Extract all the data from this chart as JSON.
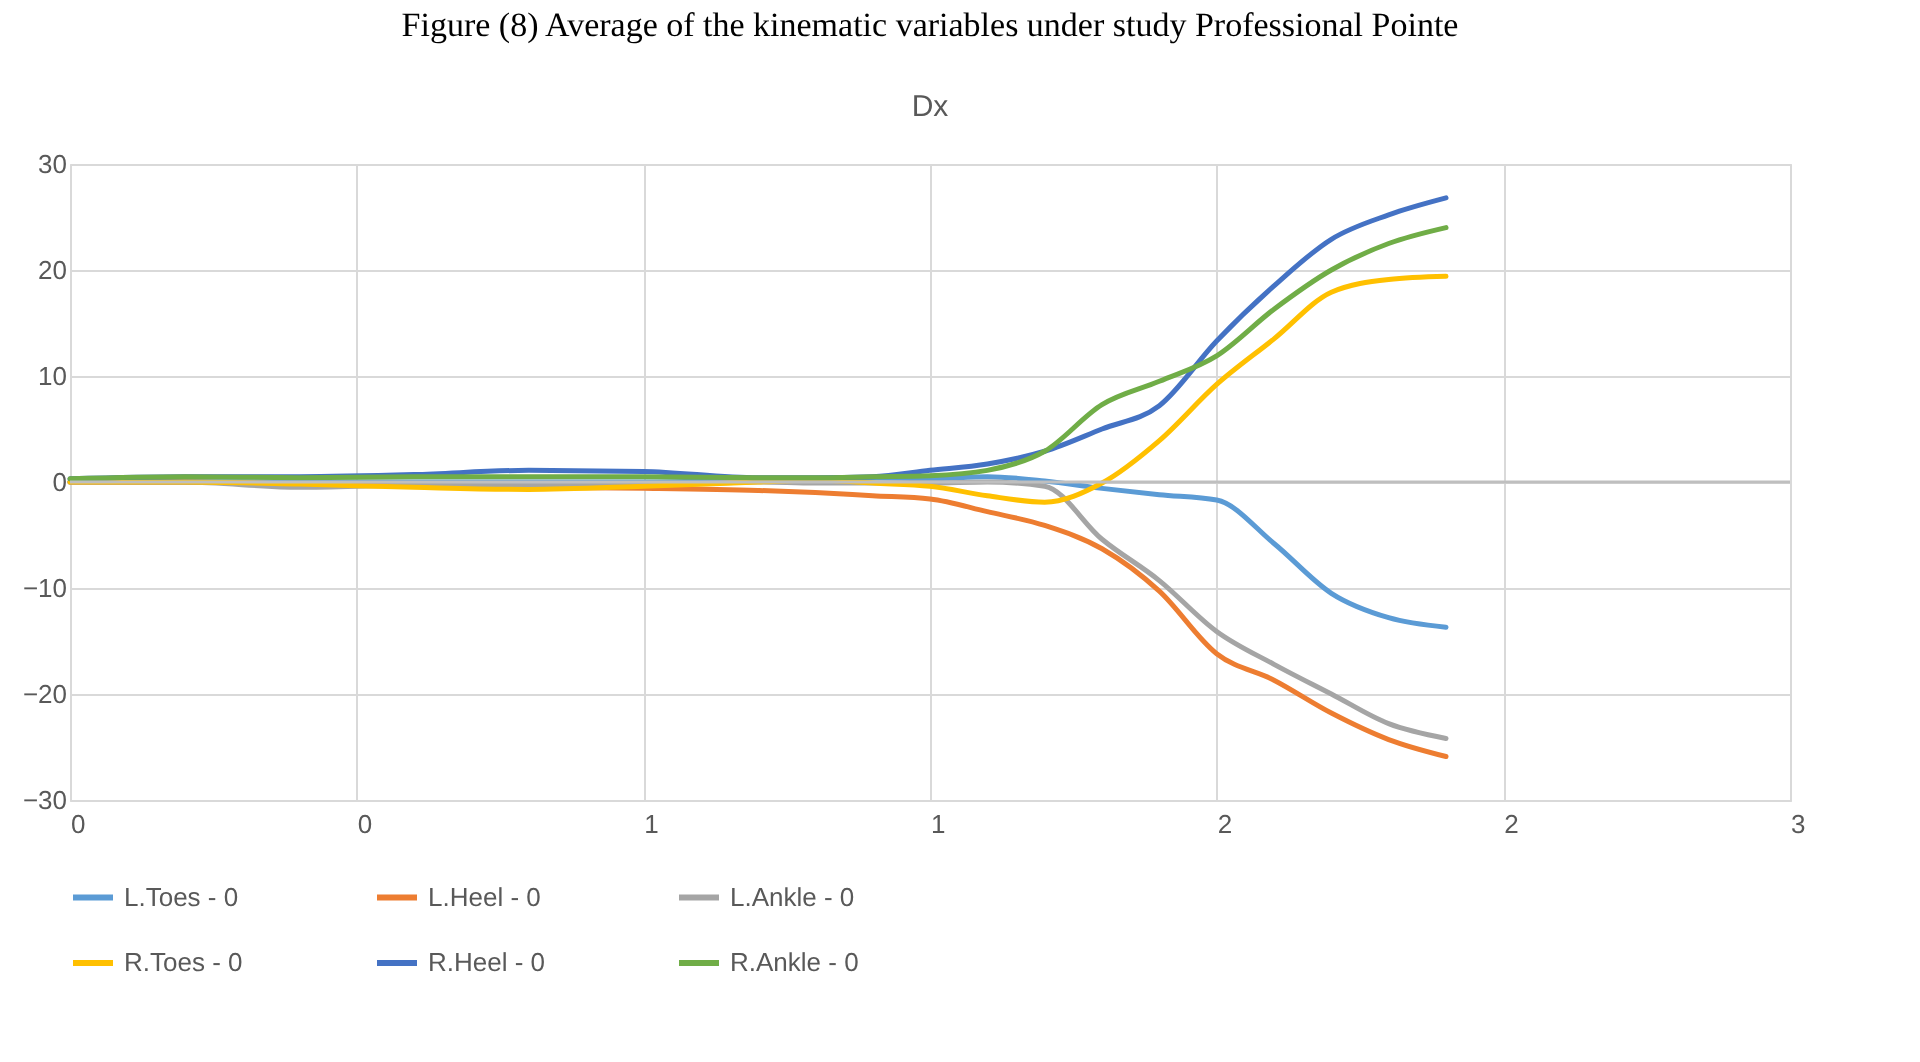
{
  "chart_data": {
    "type": "line",
    "title": "Figure (8) Average of the kinematic variables under study Professional Pointe",
    "subtitle": "Dx",
    "x": [
      0,
      0.2,
      0.4,
      0.6,
      0.8,
      1.0,
      1.2,
      1.3,
      1.4,
      1.5,
      1.6,
      1.7,
      1.8,
      1.9,
      2.0,
      2.1,
      2.2,
      2.3,
      2.4
    ],
    "series": [
      {
        "name": "L.Toes - 0",
        "color": "#5b9bd5",
        "values": [
          0,
          0,
          0,
          0,
          0,
          0,
          0.2,
          0.3,
          0.4,
          0.3,
          0.5,
          0.1,
          -0.6,
          -1.2,
          -1.7,
          -5.8,
          -10.5,
          -12.8,
          -13.7
        ]
      },
      {
        "name": "L.Heel - 0",
        "color": "#ed7d31",
        "values": [
          0,
          0,
          -0.2,
          -0.3,
          -0.5,
          -0.6,
          -0.8,
          -1.0,
          -1.3,
          -1.6,
          -2.8,
          -4.1,
          -6.3,
          -10.3,
          -16.2,
          -18.7,
          -21.8,
          -24.3,
          -25.9
        ]
      },
      {
        "name": "L.Ankle - 0",
        "color": "#a5a5a5",
        "values": [
          0,
          0,
          -0.5,
          -0.3,
          -0.3,
          -0.3,
          0,
          -0.1,
          -0.1,
          -0.1,
          0,
          -0.4,
          -5.4,
          -9.3,
          -14.1,
          -17.2,
          -20.0,
          -22.8,
          -24.2
        ]
      },
      {
        "name": "R.Toes - 0",
        "color": "#ffc000",
        "values": [
          0,
          0,
          -0.2,
          -0.5,
          -0.7,
          -0.4,
          0,
          0.2,
          -0.1,
          -0.4,
          -1.3,
          -1.9,
          -0.1,
          3.9,
          9.2,
          13.5,
          17.9,
          19.1,
          19.4
        ]
      },
      {
        "name": "R.Heel - 0",
        "color": "#4472c4",
        "values": [
          0.3,
          0.5,
          0.5,
          0.7,
          1.1,
          1.0,
          0.4,
          0.4,
          0.5,
          1.1,
          1.7,
          2.9,
          5.0,
          7.2,
          13.3,
          18.5,
          22.9,
          25.2,
          26.8
        ]
      },
      {
        "name": "R.Ankle - 0",
        "color": "#70ad47",
        "values": [
          0.3,
          0.5,
          0.4,
          0.5,
          0.5,
          0.5,
          0.4,
          0.4,
          0.5,
          0.6,
          1.1,
          2.9,
          7.3,
          9.5,
          11.9,
          16.3,
          20.0,
          22.5,
          24.0
        ]
      }
    ],
    "xlim": [
      0,
      3
    ],
    "xticks": [
      {
        "value": 0,
        "label": "0"
      },
      {
        "value": 0.5,
        "label": "0"
      },
      {
        "value": 1,
        "label": "1"
      },
      {
        "value": 1.5,
        "label": "1"
      },
      {
        "value": 2,
        "label": "2"
      },
      {
        "value": 2.5,
        "label": "2"
      },
      {
        "value": 3,
        "label": "3"
      }
    ],
    "ylim": [
      -30,
      30
    ],
    "yticks": [
      -30,
      -20,
      -10,
      0,
      10,
      20,
      30
    ],
    "grid": true,
    "legend": "bottom",
    "line_style": "solid",
    "marker": "none"
  }
}
